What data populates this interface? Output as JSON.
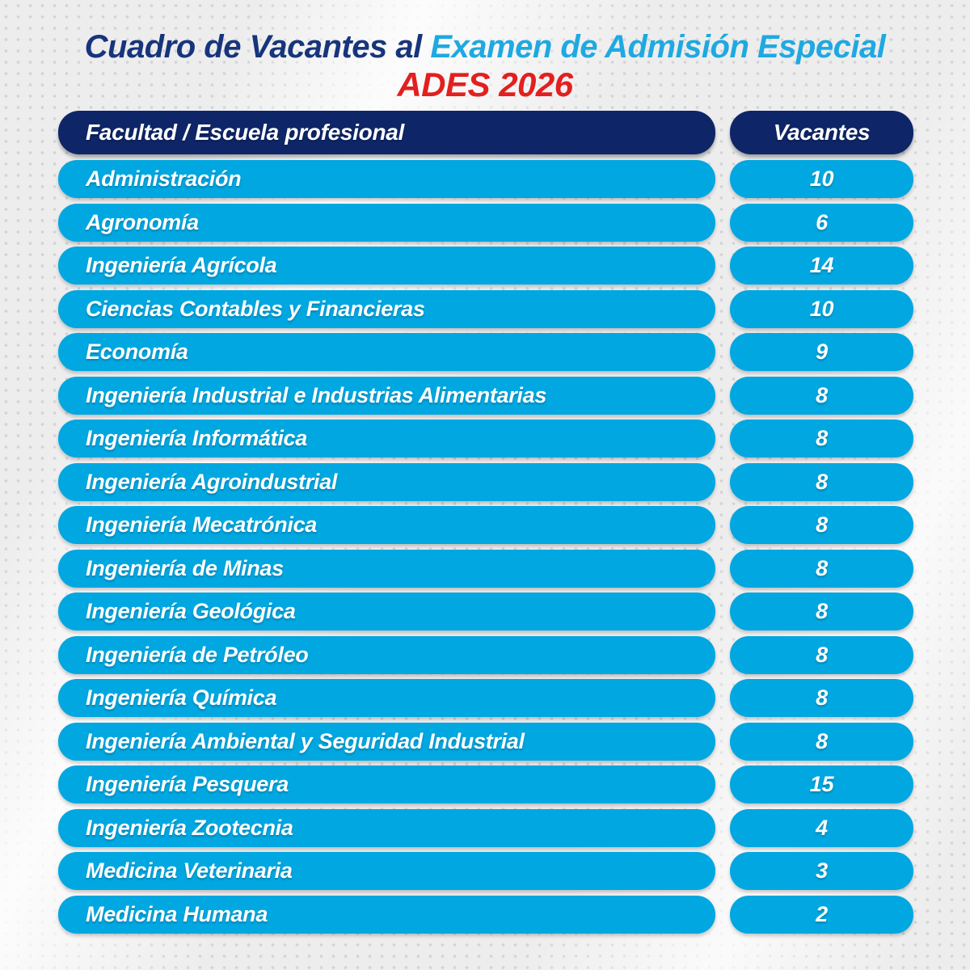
{
  "title": {
    "line1_dark": "Cuadro de Vacantes al ",
    "line1_light": "Examen de Admisión Especial",
    "line2": "ADES 2026"
  },
  "colors": {
    "header_navy": "#0e2668",
    "row_cyan": "#00a7e1",
    "title_dark_blue": "#17357c",
    "title_light_blue": "#1ea9e1",
    "title_red": "#e2201f",
    "background": "#ededee"
  },
  "table": {
    "header": {
      "faculty": "Facultad / Escuela profesional",
      "vacancies": "Vacantes"
    },
    "rows": [
      {
        "name": "Administración",
        "vacancies": "10"
      },
      {
        "name": "Agronomía",
        "vacancies": "6"
      },
      {
        "name": "Ingeniería Agrícola",
        "vacancies": "14"
      },
      {
        "name": "Ciencias Contables y Financieras",
        "vacancies": "10"
      },
      {
        "name": "Economía",
        "vacancies": "9"
      },
      {
        "name": "Ingeniería Industrial e Industrias Alimentarias",
        "vacancies": "8"
      },
      {
        "name": "Ingeniería Informática",
        "vacancies": "8"
      },
      {
        "name": "Ingeniería Agroindustrial",
        "vacancies": "8"
      },
      {
        "name": "Ingeniería Mecatrónica",
        "vacancies": "8"
      },
      {
        "name": "Ingeniería de Minas",
        "vacancies": "8"
      },
      {
        "name": "Ingeniería Geológica",
        "vacancies": "8"
      },
      {
        "name": "Ingeniería de Petróleo",
        "vacancies": "8"
      },
      {
        "name": "Ingeniería Química",
        "vacancies": "8"
      },
      {
        "name": "Ingeniería Ambiental y Seguridad Industrial",
        "vacancies": "8"
      },
      {
        "name": "Ingeniería Pesquera",
        "vacancies": "15"
      },
      {
        "name": "Ingeniería Zootecnia",
        "vacancies": "4"
      },
      {
        "name": "Medicina Veterinaria",
        "vacancies": "3"
      },
      {
        "name": "Medicina Humana",
        "vacancies": "2"
      }
    ]
  }
}
